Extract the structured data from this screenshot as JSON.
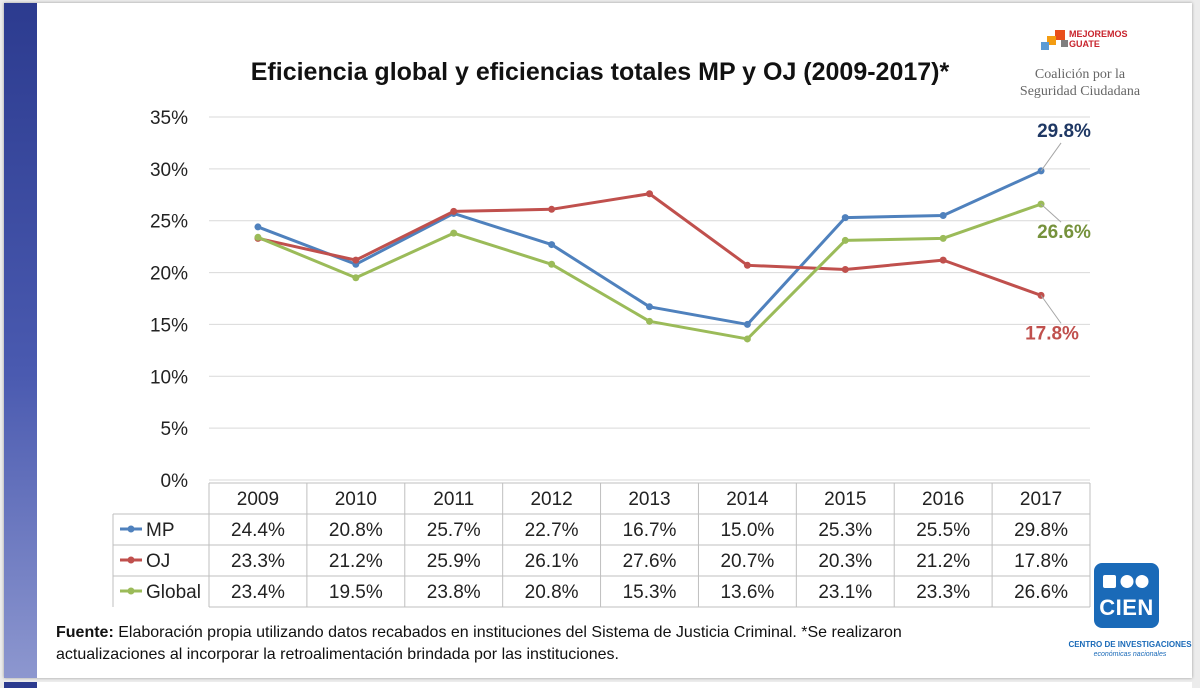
{
  "chart_data": {
    "type": "line",
    "title": "Eficiencia global y eficiencias totales MP y OJ (2009-2017)*",
    "categories": [
      "2009",
      "2010",
      "2011",
      "2012",
      "2013",
      "2014",
      "2015",
      "2016",
      "2017"
    ],
    "y_ticks": [
      "0%",
      "5%",
      "10%",
      "15%",
      "20%",
      "25%",
      "30%",
      "35%"
    ],
    "ylim": [
      0,
      35
    ],
    "series": [
      {
        "name": "MP",
        "color": "#4f81bd",
        "values": [
          24.4,
          20.8,
          25.7,
          22.7,
          16.7,
          15.0,
          25.3,
          25.5,
          29.8
        ],
        "cells": [
          "24.4%",
          "20.8%",
          "25.7%",
          "22.7%",
          "16.7%",
          "15.0%",
          "25.3%",
          "25.5%",
          "29.8%"
        ],
        "end_label": "29.8%",
        "end_label_color": "#1f3864"
      },
      {
        "name": "OJ",
        "color": "#c0504d",
        "values": [
          23.3,
          21.2,
          25.9,
          26.1,
          27.6,
          20.7,
          20.3,
          21.2,
          17.8
        ],
        "cells": [
          "23.3%",
          "21.2%",
          "25.9%",
          "26.1%",
          "27.6%",
          "20.7%",
          "20.3%",
          "21.2%",
          "17.8%"
        ],
        "end_label": "17.8%",
        "end_label_color": "#c0504d"
      },
      {
        "name": "Global",
        "color": "#9bbb59",
        "values": [
          23.4,
          19.5,
          23.8,
          20.8,
          15.3,
          13.6,
          23.1,
          23.3,
          26.6
        ],
        "cells": [
          "23.4%",
          "19.5%",
          "23.8%",
          "20.8%",
          "15.3%",
          "13.6%",
          "23.1%",
          "23.3%",
          "26.6%"
        ],
        "end_label": "26.6%",
        "end_label_color": "#76923c"
      }
    ]
  },
  "logo_mejoremos": {
    "line1": "MEJOREMOS",
    "line2": "GUATE",
    "org1": "Coalición por la",
    "org2": "Seguridad Ciudadana"
  },
  "footer": {
    "label": "Fuente:",
    "line1": "Elaboración propia utilizando datos recabados en instituciones del Sistema de Justicia Criminal. *Se realizaron",
    "line2": "actualizaciones al incorporar la retroalimentación brindada por las instituciones."
  },
  "logo_cien": {
    "name": "CIEN",
    "sub1": "CENTRO DE INVESTIGACIONES",
    "sub2": "económicas nacionales"
  }
}
